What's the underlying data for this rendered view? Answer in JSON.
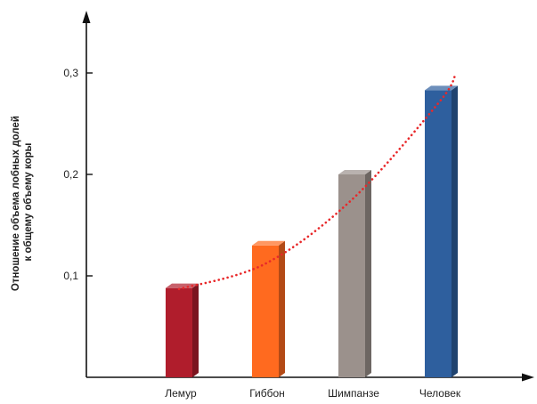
{
  "chart_data": {
    "type": "bar",
    "title": "",
    "xlabel": "",
    "ylabel": "Отношение объема лобных долей к общему объему коры",
    "ylabel_lines": [
      "Отношение объема лобных долей",
      "к общему объему коры"
    ],
    "categories": [
      "Лемур",
      "Гиббон",
      "Шимпанзе",
      "Человек"
    ],
    "values": [
      0.088,
      0.13,
      0.2,
      0.283
    ],
    "bar_colors": [
      "#b01d2c",
      "#ff6a1f",
      "#9b918c",
      "#2e5f9e"
    ],
    "yticks": [
      {
        "value": 0.1,
        "label": "0,1"
      },
      {
        "value": 0.2,
        "label": "0,2"
      },
      {
        "value": 0.3,
        "label": "0,3"
      }
    ],
    "ylim": [
      0,
      0.36
    ],
    "trendline": {
      "style": "dotted",
      "color": "#e8282a",
      "x": [
        0.0,
        1.0,
        2.0,
        3.0,
        3.2
      ],
      "y": [
        0.087,
        0.112,
        0.175,
        0.27,
        0.298
      ]
    },
    "grid": false,
    "legend": "none"
  }
}
